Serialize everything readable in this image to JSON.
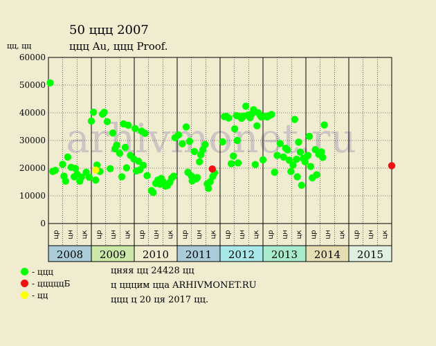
{
  "header": {
    "title": "50 ццц 2007",
    "subtitle": "ццц Au, ццц Proof."
  },
  "notes": [
    "цняя цц 24428 цц",
    "ц цццим цца ARHIVMONET.RU",
    "ццц ц 20 ця 2017 цц."
  ],
  "watermark": "arhivmonet.ru",
  "legend": [
    {
      "label": "- ццц",
      "color": "#00ff00"
    },
    {
      "label": "- цццццБ",
      "color": "#ee1111"
    },
    {
      "label": "- цц",
      "color": "#ffff00"
    }
  ],
  "colors": {
    "background": "#f0ecd0",
    "green": "#00ff00",
    "red": "#ee1111",
    "yellow": "#ffff00",
    "years": [
      "#a9ccd8",
      "#cce8a8",
      "#f0ecd0",
      "#a9ccd8",
      "#a9e8e8",
      "#a9eccd",
      "#e5deb5",
      "#dff0e0"
    ]
  },
  "chart_data": {
    "type": "scatter",
    "title": "50 ццц 2007",
    "subtitle": "ццц Au, ццц Proof.",
    "ylabel": "цц, цц",
    "ylim": [
      0,
      60000
    ],
    "yticks": [
      0,
      10000,
      20000,
      30000,
      40000,
      50000,
      60000
    ],
    "xlim": [
      2008,
      2016
    ],
    "years": [
      "2008",
      "2009",
      "2010",
      "2011",
      "2012",
      "2013",
      "2014",
      "2015"
    ],
    "month_labels": [
      "цр",
      "цн",
      "цк",
      "цр",
      "цн",
      "цк",
      "цр",
      "цн",
      "цк",
      "цр",
      "цн",
      "цк",
      "цр",
      "цн",
      "цк",
      "цр",
      "цн",
      "цк",
      "цр",
      "цн",
      "цк",
      "цр",
      "цн",
      "цк"
    ],
    "grid": true,
    "legend_position": "bottom-left",
    "series": [
      {
        "name": "- ццц",
        "color": "#00ff00",
        "points": [
          [
            2008.04,
            50800
          ],
          [
            2008.1,
            18800
          ],
          [
            2008.16,
            19200
          ],
          [
            2008.33,
            21400
          ],
          [
            2008.36,
            17100
          ],
          [
            2008.4,
            15300
          ],
          [
            2008.45,
            24000
          ],
          [
            2008.53,
            20300
          ],
          [
            2008.6,
            16900
          ],
          [
            2008.63,
            19900
          ],
          [
            2008.67,
            17800
          ],
          [
            2008.73,
            15300
          ],
          [
            2008.77,
            16800
          ],
          [
            2008.88,
            18500
          ],
          [
            2008.95,
            16700
          ],
          [
            2009.0,
            37000
          ],
          [
            2009.05,
            40200
          ],
          [
            2009.1,
            15700
          ],
          [
            2009.13,
            21100
          ],
          [
            2009.2,
            18800
          ],
          [
            2009.26,
            39500
          ],
          [
            2009.3,
            40200
          ],
          [
            2009.37,
            36800
          ],
          [
            2009.44,
            19800
          ],
          [
            2009.5,
            32700
          ],
          [
            2009.55,
            27000
          ],
          [
            2009.59,
            28300
          ],
          [
            2009.66,
            25400
          ],
          [
            2009.71,
            16900
          ],
          [
            2009.75,
            36000
          ],
          [
            2009.79,
            27500
          ],
          [
            2009.82,
            20100
          ],
          [
            2009.86,
            35500
          ],
          [
            2009.91,
            24600
          ],
          [
            2009.99,
            23300
          ],
          [
            2010.02,
            34300
          ],
          [
            2010.05,
            19000
          ],
          [
            2010.1,
            22500
          ],
          [
            2010.13,
            19400
          ],
          [
            2010.17,
            33400
          ],
          [
            2010.21,
            21000
          ],
          [
            2010.25,
            32600
          ],
          [
            2010.3,
            17300
          ],
          [
            2010.4,
            11900
          ],
          [
            2010.44,
            11200
          ],
          [
            2010.5,
            14500
          ],
          [
            2010.55,
            15700
          ],
          [
            2010.6,
            14200
          ],
          [
            2010.63,
            16300
          ],
          [
            2010.67,
            15100
          ],
          [
            2010.73,
            13500
          ],
          [
            2010.78,
            13800
          ],
          [
            2010.83,
            14900
          ],
          [
            2010.87,
            16400
          ],
          [
            2010.92,
            17100
          ],
          [
            2010.95,
            31000
          ],
          [
            2011.03,
            32000
          ],
          [
            2011.12,
            28800
          ],
          [
            2011.21,
            34900
          ],
          [
            2011.25,
            18500
          ],
          [
            2011.29,
            29700
          ],
          [
            2011.33,
            17200
          ],
          [
            2011.35,
            15400
          ],
          [
            2011.4,
            26000
          ],
          [
            2011.44,
            16100
          ],
          [
            2011.47,
            16600
          ],
          [
            2011.52,
            22300
          ],
          [
            2011.55,
            24800
          ],
          [
            2011.6,
            26700
          ],
          [
            2011.65,
            28500
          ],
          [
            2011.7,
            14300
          ],
          [
            2011.73,
            12700
          ],
          [
            2011.77,
            15100
          ],
          [
            2011.83,
            17000
          ],
          [
            2011.87,
            18300
          ],
          [
            2012.06,
            29500
          ],
          [
            2012.1,
            38600
          ],
          [
            2012.15,
            38700
          ],
          [
            2012.2,
            38100
          ],
          [
            2012.26,
            21600
          ],
          [
            2012.31,
            24400
          ],
          [
            2012.34,
            34200
          ],
          [
            2012.38,
            39000
          ],
          [
            2012.4,
            30000
          ],
          [
            2012.42,
            21900
          ],
          [
            2012.46,
            38700
          ],
          [
            2012.5,
            38000
          ],
          [
            2012.55,
            38800
          ],
          [
            2012.6,
            42400
          ],
          [
            2012.65,
            39200
          ],
          [
            2012.7,
            38200
          ],
          [
            2012.74,
            39600
          ],
          [
            2012.78,
            41100
          ],
          [
            2012.82,
            21300
          ],
          [
            2012.86,
            35300
          ],
          [
            2012.89,
            40000
          ],
          [
            2012.93,
            39200
          ],
          [
            2012.96,
            38500
          ],
          [
            2013.0,
            23000
          ],
          [
            2013.05,
            38700
          ],
          [
            2013.1,
            38500
          ],
          [
            2013.15,
            39000
          ],
          [
            2013.2,
            39400
          ],
          [
            2013.27,
            18500
          ],
          [
            2013.33,
            24600
          ],
          [
            2013.4,
            28900
          ],
          [
            2013.48,
            24000
          ],
          [
            2013.53,
            27200
          ],
          [
            2013.57,
            26600
          ],
          [
            2013.61,
            22900
          ],
          [
            2013.65,
            18800
          ],
          [
            2013.7,
            21100
          ],
          [
            2013.74,
            37600
          ],
          [
            2013.78,
            23200
          ],
          [
            2013.8,
            16900
          ],
          [
            2013.83,
            29400
          ],
          [
            2013.87,
            25800
          ],
          [
            2013.9,
            13800
          ],
          [
            2013.94,
            23500
          ],
          [
            2013.98,
            22300
          ],
          [
            2014.02,
            24200
          ],
          [
            2014.05,
            24600
          ],
          [
            2014.08,
            31500
          ],
          [
            2014.11,
            20600
          ],
          [
            2014.15,
            16500
          ],
          [
            2014.22,
            26700
          ],
          [
            2014.25,
            17600
          ],
          [
            2014.3,
            25000
          ],
          [
            2014.36,
            25900
          ],
          [
            2014.39,
            23900
          ],
          [
            2014.43,
            35600
          ]
        ]
      },
      {
        "name": "- цццццБ",
        "color": "#ee1111",
        "points": [
          [
            2011.82,
            19700
          ],
          [
            2016.0,
            20900
          ]
        ]
      },
      {
        "name": "- цц",
        "color": "#ffff00",
        "points": [
          [
            2009.1,
            19300
          ]
        ]
      }
    ]
  }
}
